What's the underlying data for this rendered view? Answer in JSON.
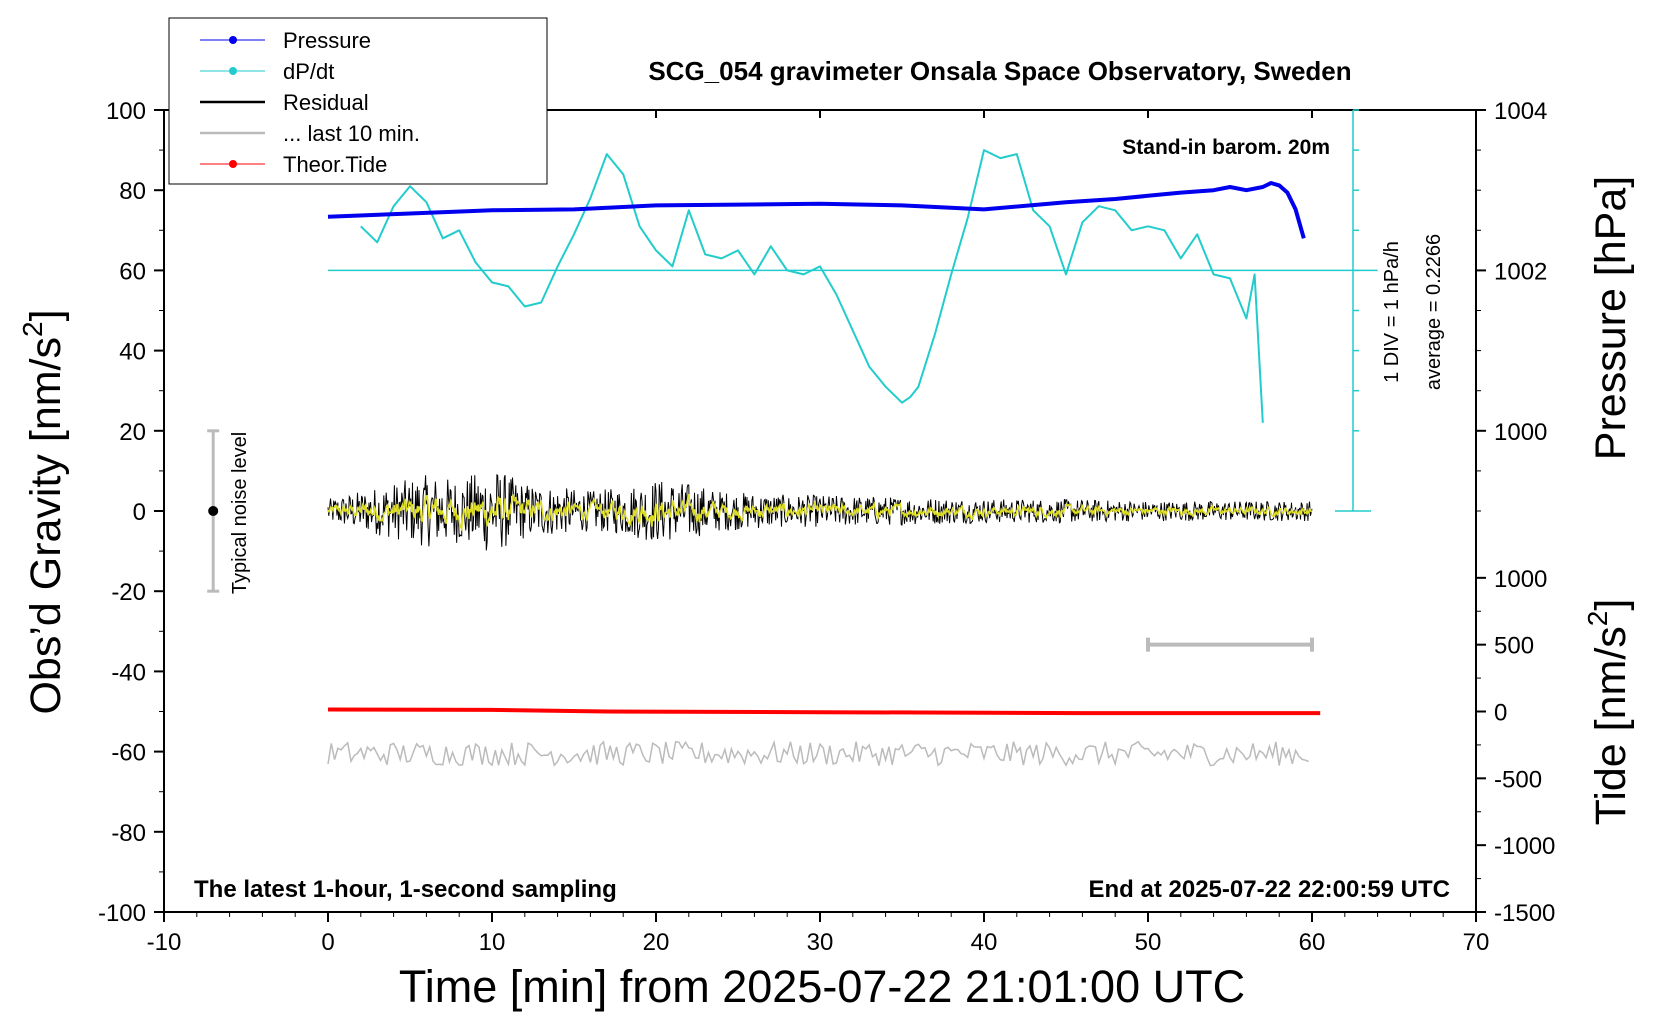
{
  "chart_data": {
    "type": "line",
    "title": "SCG_054 gravimeter Onsala Space Observatory, Sweden",
    "xlabel": "Time [min] from 2025-07-22 21:01:00 UTC",
    "xlim": [
      -10,
      70
    ],
    "xticks": [
      -10,
      0,
      10,
      20,
      30,
      40,
      50,
      60,
      70
    ],
    "left_axis": {
      "label_main": "Obs’d Gravity [nm/s",
      "label_sup": "2",
      "label_end": "]",
      "ylim": [
        -100,
        100
      ],
      "ticks": [
        -100,
        -80,
        -60,
        -40,
        -20,
        0,
        20,
        40,
        60,
        80,
        100
      ]
    },
    "pressure_axis": {
      "label": "Pressure [hPa]",
      "ylim": [
        998,
        1006
      ],
      "ticks": [
        1000,
        1002,
        1004
      ]
    },
    "tide_axis": {
      "label_main": "Tide [nm/s",
      "label_sup": "2",
      "label_end": "]",
      "ylim": [
        -1500,
        1500
      ],
      "ticks": [
        -1500,
        -1000,
        -500,
        0,
        500,
        1000
      ]
    },
    "annotations": {
      "barometer": "Stand-in barom. 20m",
      "footer_left": "The latest 1-hour, 1-second sampling",
      "footer_right": "End at 2025-07-22 22:00:59 UTC",
      "dpdt_div": "1 DIV = 1 hPa/h",
      "dpdt_avg": "average = 0.2266",
      "noise": "Typical noise level"
    },
    "legend": {
      "position": "top-left",
      "entries": [
        {
          "name": "Pressure",
          "color": "#0000ee",
          "marker": true
        },
        {
          "name": "dP/dt",
          "color": "#22cccc",
          "marker": true
        },
        {
          "name": "Residual",
          "color": "#000000",
          "marker": false
        },
        {
          "name": "... last 10 min.",
          "color": "#bbbbbb",
          "marker": false
        },
        {
          "name": "Theor.Tide",
          "color": "#ff0000",
          "marker": true
        }
      ]
    },
    "noise_bar": {
      "x": -7,
      "y": 0,
      "low": -20,
      "high": 20
    },
    "ten_min_bar": {
      "x0": 50,
      "x1": 60,
      "tide_level": 500
    },
    "series": [
      {
        "name": "Pressure",
        "color": "#0000ee",
        "axis": "pressure",
        "x": [
          0,
          5,
          10,
          15,
          20,
          25,
          30,
          35,
          40,
          45,
          48,
          50,
          52,
          54,
          55,
          56,
          57,
          57.5,
          58,
          58.5,
          59,
          59.5
        ],
        "y": [
          1002.67,
          1002.71,
          1002.75,
          1002.76,
          1002.81,
          1002.82,
          1002.83,
          1002.81,
          1002.76,
          1002.85,
          1002.89,
          1002.93,
          1002.97,
          1003.0,
          1003.04,
          1003.0,
          1003.04,
          1003.09,
          1003.06,
          1002.97,
          1002.76,
          1002.4
        ]
      },
      {
        "name": "dP/dt",
        "color": "#22cccc",
        "axis": "dpdt",
        "baseline_hPa": 1002,
        "scale_hPa_per_div": 1,
        "x": [
          2,
          3,
          4,
          5,
          6,
          7,
          8,
          9,
          10,
          11,
          12,
          13,
          14,
          15,
          16,
          17,
          18,
          19,
          20,
          21,
          22,
          23,
          24,
          25,
          26,
          27,
          28,
          29,
          30,
          31,
          32,
          33,
          34,
          35,
          35.5,
          36,
          37,
          38,
          39,
          40,
          41,
          42,
          43,
          44,
          45,
          46,
          47,
          48,
          49,
          50,
          51,
          52,
          53,
          54,
          55,
          56,
          56.5,
          57
        ],
        "y": [
          0.55,
          0.35,
          0.8,
          1.05,
          0.85,
          0.4,
          0.5,
          0.1,
          -0.15,
          -0.2,
          -0.45,
          -0.4,
          0.05,
          0.45,
          0.9,
          1.45,
          1.2,
          0.55,
          0.25,
          0.05,
          0.75,
          0.2,
          0.15,
          0.25,
          -0.05,
          0.3,
          0.0,
          -0.05,
          0.05,
          -0.3,
          -0.75,
          -1.2,
          -1.45,
          -1.65,
          -1.58,
          -1.45,
          -0.8,
          -0.05,
          0.65,
          1.5,
          1.4,
          1.45,
          0.75,
          0.55,
          -0.05,
          0.6,
          0.8,
          0.75,
          0.5,
          0.55,
          0.5,
          0.15,
          0.45,
          -0.05,
          -0.1,
          -0.6,
          -0.05,
          -1.9
        ]
      },
      {
        "name": "Theor.Tide",
        "color": "#ff0000",
        "axis": "tide",
        "x": [
          0,
          10,
          17,
          30,
          46,
          60.5
        ],
        "y": [
          15,
          12,
          0,
          -5,
          -12,
          -12
        ]
      }
    ],
    "residual": {
      "x_range": [
        0,
        60
      ],
      "center": 0,
      "amplitude_envelope": [
        [
          0,
          3
        ],
        [
          2,
          5
        ],
        [
          4,
          7
        ],
        [
          6,
          9
        ],
        [
          8,
          8
        ],
        [
          10,
          11
        ],
        [
          12,
          7
        ],
        [
          14,
          6
        ],
        [
          16,
          5
        ],
        [
          18,
          6
        ],
        [
          20,
          8
        ],
        [
          22,
          7
        ],
        [
          24,
          5
        ],
        [
          26,
          4.5
        ],
        [
          28,
          4
        ],
        [
          30,
          4
        ],
        [
          35,
          3.5
        ],
        [
          40,
          3
        ],
        [
          45,
          3
        ],
        [
          50,
          2.5
        ],
        [
          55,
          2.5
        ],
        [
          60,
          2.5
        ]
      ]
    },
    "last_10_min": {
      "center": -60.5,
      "amplitude": 3
    }
  }
}
